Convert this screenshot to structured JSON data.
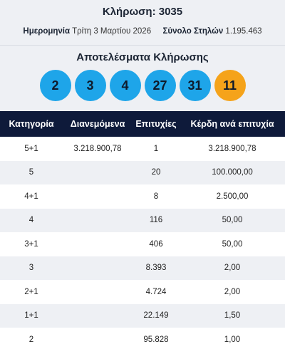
{
  "header": {
    "draw_title": "Κλήρωση: 3035",
    "date_label": "Ημερομηνία",
    "date_value": "Τρίτη 3 Μαρτίου 2026",
    "columns_label": "Σύνολο Στηλών",
    "columns_value": "1.195.463"
  },
  "results": {
    "title": "Αποτελέσματα Κλήρωσης",
    "numbers": [
      "2",
      "3",
      "4",
      "27",
      "31"
    ],
    "bonus": "11",
    "colors": {
      "number": "#1ea5e9",
      "bonus": "#f5a31a"
    }
  },
  "table": {
    "headers": [
      "Κατηγορία",
      "Διανεμόμενα",
      "Επιτυχίες",
      "Κέρδη ανά επιτυχία"
    ],
    "rows": [
      [
        "5+1",
        "3.218.900,78",
        "1",
        "3.218.900,78"
      ],
      [
        "5",
        "",
        "20",
        "100.000,00"
      ],
      [
        "4+1",
        "",
        "8",
        "2.500,00"
      ],
      [
        "4",
        "",
        "116",
        "50,00"
      ],
      [
        "3+1",
        "",
        "406",
        "50,00"
      ],
      [
        "3",
        "",
        "8.393",
        "2,00"
      ],
      [
        "2+1",
        "",
        "4.724",
        "2,00"
      ],
      [
        "1+1",
        "",
        "22.149",
        "1,50"
      ],
      [
        "2",
        "",
        "95.828",
        "1,00"
      ]
    ]
  }
}
